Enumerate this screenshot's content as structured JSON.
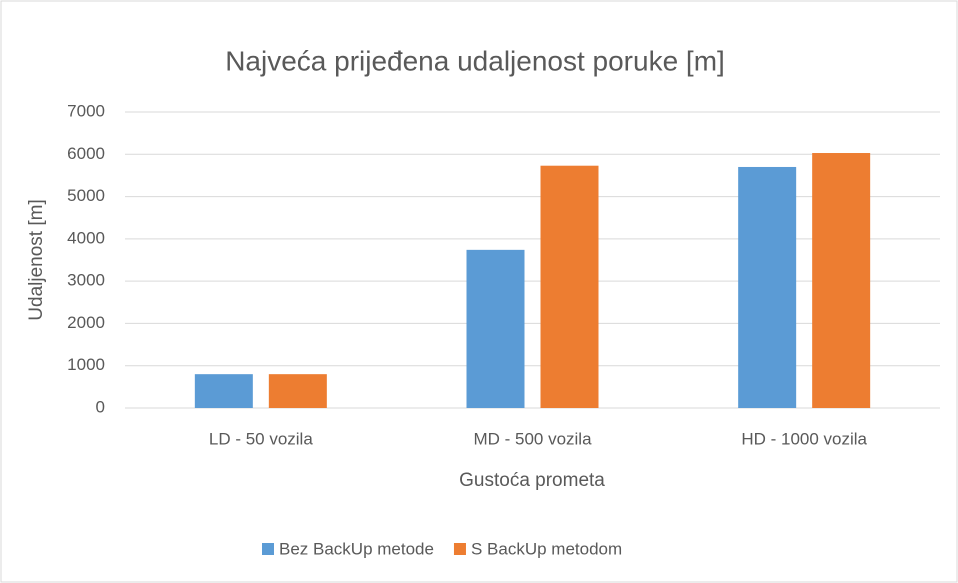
{
  "chart_data": {
    "type": "bar",
    "title": "Najveća prijeđena udaljenost poruke [m]",
    "x_label": "Gustoća prometa",
    "y_label": "Udaljenost [m]",
    "categories": [
      "LD - 50 vozila",
      "MD - 500 vozila",
      "HD - 1000 vozila"
    ],
    "series": [
      {
        "name": "Bez BackUp metode",
        "color": "#5b9bd5",
        "values": [
          800,
          3740,
          5700
        ]
      },
      {
        "name": "S BackUp metodom",
        "color": "#ed7d31",
        "values": [
          800,
          5730,
          6030
        ]
      }
    ],
    "ylim": [
      0,
      7000
    ],
    "yticks": [
      0,
      1000,
      2000,
      3000,
      4000,
      5000,
      6000,
      7000
    ],
    "grid": true,
    "legend": "bottom"
  }
}
